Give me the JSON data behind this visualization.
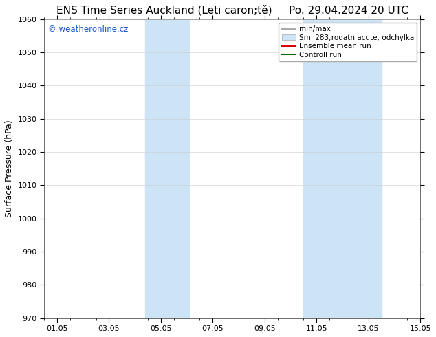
{
  "title": "ENS Time Series Auckland (Leti caron;tě)     Po. 29.04.2024 20 UTC",
  "ylabel": "Surface Pressure (hPa)",
  "ylim": [
    970,
    1060
  ],
  "yticks": [
    970,
    980,
    990,
    1000,
    1010,
    1020,
    1030,
    1040,
    1050,
    1060
  ],
  "xlim": [
    0.0,
    14.5
  ],
  "xtick_labels": [
    "01.05",
    "03.05",
    "05.05",
    "07.05",
    "09.05",
    "11.05",
    "13.05",
    "15.05"
  ],
  "xtick_positions": [
    0.5,
    2.5,
    4.5,
    6.5,
    8.5,
    10.5,
    12.5,
    14.5
  ],
  "minor_xticks": [
    0.0,
    1.0,
    2.0,
    3.0,
    4.0,
    5.0,
    6.0,
    7.0,
    8.0,
    9.0,
    10.0,
    11.0,
    12.0,
    13.0,
    14.0,
    14.5
  ],
  "shaded_regions": [
    {
      "x_start": 3.9,
      "x_end": 5.6
    },
    {
      "x_start": 10.0,
      "x_end": 13.0
    }
  ],
  "shaded_color": "#cce4f5",
  "background_color": "#ffffff",
  "watermark_text": "© weatheronline.cz",
  "watermark_color": "#1a56cc",
  "legend_entries": [
    {
      "label": "min/max",
      "color": "#aaaaaa",
      "lw": 1.5,
      "is_patch": false
    },
    {
      "label": "Sm  283;rodatn acute; odchylka",
      "color": "#cce4f5",
      "lw": 8,
      "is_patch": true
    },
    {
      "label": "Ensemble mean run",
      "color": "#dd0000",
      "lw": 1.5,
      "is_patch": false
    },
    {
      "label": "Controll run",
      "color": "#006600",
      "lw": 1.5,
      "is_patch": false
    }
  ],
  "title_fontsize": 11,
  "ylabel_fontsize": 9,
  "tick_fontsize": 8,
  "legend_fontsize": 7.5,
  "figsize": [
    6.34,
    4.9
  ],
  "dpi": 100
}
